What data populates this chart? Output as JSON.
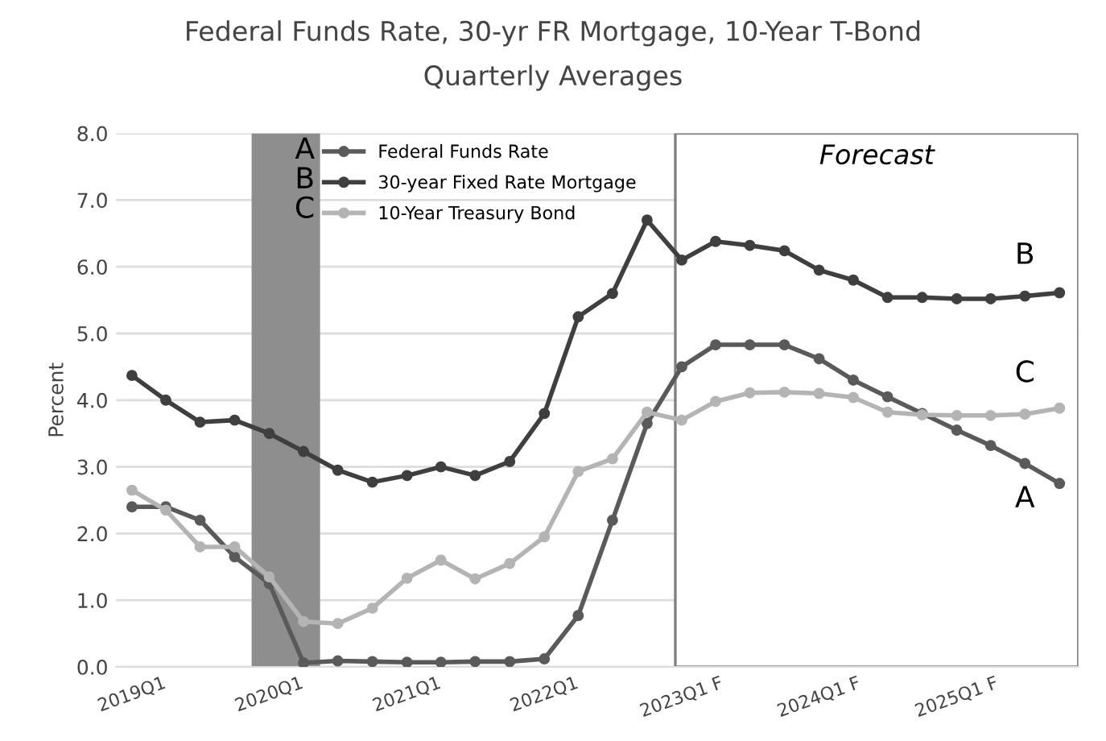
{
  "chart_data": {
    "type": "line",
    "title": "Federal Funds Rate, 30-yr FR Mortgage, 10-Year T-Bond",
    "subtitle": "Quarterly Averages",
    "ylabel": "Percent",
    "x": [
      "2019-01",
      "2019-04",
      "2019-07",
      "2019-10",
      "2020-01",
      "2020-04",
      "2020-07",
      "2020-10",
      "2021-01",
      "2021-04",
      "2021-07",
      "2021-10",
      "2022-01",
      "2022-04",
      "2022-07",
      "2022-10",
      "2023-01",
      "2023-04",
      "2023-07",
      "2023-10",
      "2024-01",
      "2024-04",
      "2024-07",
      "2024-10",
      "2025-01",
      "2025-04",
      "2025-07",
      "2025-10"
    ],
    "series": [
      {
        "name": "Federal Funds Rate",
        "color": "#5a5a5a",
        "values": [
          2.4,
          2.4,
          2.2,
          1.65,
          1.25,
          0.06,
          0.09,
          0.08,
          0.07,
          0.07,
          0.08,
          0.08,
          0.12,
          0.77,
          2.2,
          3.65,
          4.5,
          4.83,
          4.83,
          4.83,
          4.62,
          4.3,
          4.05,
          3.8,
          3.55,
          3.32,
          3.05,
          2.75
        ]
      },
      {
        "name": "30-year Fixed Rate Mortgage",
        "color": "#3f3f3f",
        "values": [
          4.37,
          4.0,
          3.67,
          3.7,
          3.5,
          3.23,
          2.95,
          2.77,
          2.87,
          3.0,
          2.87,
          3.08,
          3.8,
          5.25,
          5.6,
          6.7,
          6.1,
          6.38,
          6.32,
          6.24,
          5.95,
          5.8,
          5.54,
          5.54,
          5.52,
          5.52,
          5.56,
          5.61
        ]
      },
      {
        "name": "10-Year Treasury Bond",
        "color": "#b4b4b4",
        "values": [
          2.65,
          2.35,
          1.8,
          1.8,
          1.35,
          0.68,
          0.65,
          0.88,
          1.33,
          1.6,
          1.32,
          1.55,
          1.95,
          2.93,
          3.12,
          3.82,
          3.7,
          3.98,
          4.11,
          4.12,
          4.1,
          4.04,
          3.82,
          3.78,
          3.77,
          3.77,
          3.79,
          3.88
        ]
      }
    ],
    "xlim": [
      "2018-11-20",
      "2025-11-20"
    ],
    "xticks": [
      {
        "value": "2019-01",
        "label": "2019Q1"
      },
      {
        "value": "2020-01",
        "label": "2020Q1"
      },
      {
        "value": "2021-01",
        "label": "2021Q1"
      },
      {
        "value": "2022-01",
        "label": "2022Q1"
      },
      {
        "value": "2023-01",
        "label": "2023Q1 F"
      },
      {
        "value": "2024-01",
        "label": "2024Q1 F"
      },
      {
        "value": "2025-01",
        "label": "2025Q1 F"
      }
    ],
    "ylim": [
      0,
      8
    ],
    "yticks": [
      {
        "value": 0,
        "label": "0.0"
      },
      {
        "value": 1,
        "label": "1.0"
      },
      {
        "value": 2,
        "label": "2.0"
      },
      {
        "value": 3,
        "label": "3.0"
      },
      {
        "value": 4,
        "label": "4.0"
      },
      {
        "value": 5,
        "label": "5.0"
      },
      {
        "value": 6,
        "label": "6.0"
      },
      {
        "value": 7,
        "label": "7.0"
      },
      {
        "value": 8,
        "label": "8.0"
      }
    ],
    "bands": [
      {
        "axis": "x",
        "from": "2019-11-15",
        "to": "2020-05-15",
        "color": "#8e8e8e"
      },
      {
        "axis": "x",
        "from": "2022-12-15",
        "to": "2025-11-20",
        "label": "Forecast",
        "color": "#ffffff"
      }
    ],
    "annotations": [
      "A",
      "B",
      "C",
      "A",
      "B",
      "C"
    ],
    "grid": "y",
    "legend": "top left",
    "marker": "circle",
    "line_style": "solid"
  }
}
